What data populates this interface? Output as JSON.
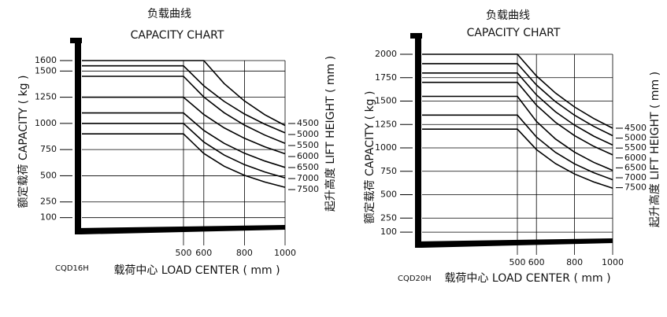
{
  "chart_data": [
    {
      "type": "line",
      "title": "负载曲线",
      "subtitle": "CAPACITY CHART",
      "model": "CQD16H",
      "x_label": "载荷中心 LOAD CENTER ( mm )",
      "y_label": "额定载荷 CAPACITY ( kg )",
      "legend_title": "起升高度 LIFT HEIGHT ( mm )",
      "x": [
        0,
        500,
        600,
        700,
        800,
        900,
        1000
      ],
      "xlim": [
        0,
        1000
      ],
      "ylim": [
        0,
        1600
      ],
      "xticks": [
        500,
        600,
        800,
        1000
      ],
      "yticks": [
        100,
        250,
        500,
        750,
        1000,
        1250,
        1500,
        1600
      ],
      "color": "#000000",
      "series": [
        {
          "name": "4500",
          "values": [
            1600,
            1600,
            1600,
            1381,
            1215,
            1083,
            980
          ]
        },
        {
          "name": "5000",
          "values": [
            1550,
            1550,
            1359,
            1210,
            1090,
            992,
            910
          ]
        },
        {
          "name": "5500",
          "values": [
            1450,
            1450,
            1252,
            1102,
            984,
            889,
            810
          ]
        },
        {
          "name": "6000",
          "values": [
            1250,
            1250,
            1085,
            958,
            858,
            777,
            710
          ]
        },
        {
          "name": "6500",
          "values": [
            1100,
            1100,
            933,
            810,
            715,
            641,
            580
          ]
        },
        {
          "name": "7000",
          "values": [
            1000,
            1000,
            822,
            698,
            606,
            536,
            480
          ]
        },
        {
          "name": "7500",
          "values": [
            900,
            900,
            713,
            591,
            504,
            440,
            390
          ]
        }
      ]
    },
    {
      "type": "line",
      "title": "负载曲线",
      "subtitle": "CAPACITY CHART",
      "model": "CQD20H",
      "x_label": "载荷中心 LOAD CENTER ( mm )",
      "y_label": "额定载荷 CAPACITY ( kg )",
      "legend_title": "起升高度 LIFT HEIGHT ( mm )",
      "x": [
        0,
        500,
        600,
        700,
        800,
        900,
        1000
      ],
      "xlim": [
        0,
        1000
      ],
      "ylim": [
        0,
        2000
      ],
      "xticks": [
        500,
        600,
        800,
        1000
      ],
      "yticks": [
        100,
        250,
        500,
        750,
        1000,
        1250,
        1500,
        1750,
        2000
      ],
      "color": "#000000",
      "series": [
        {
          "name": "4500",
          "values": [
            2000,
            2000,
            1769,
            1586,
            1437,
            1314,
            1210
          ]
        },
        {
          "name": "5000",
          "values": [
            1900,
            1900,
            1672,
            1493,
            1349,
            1230,
            1130
          ]
        },
        {
          "name": "5500",
          "values": [
            1800,
            1800,
            1566,
            1386,
            1243,
            1126,
            1030
          ]
        },
        {
          "name": "6000",
          "values": [
            1700,
            1700,
            1456,
            1273,
            1131,
            1018,
            925
          ]
        },
        {
          "name": "6500",
          "values": [
            1550,
            1550,
            1283,
            1095,
            955,
            846,
            760
          ]
        },
        {
          "name": "7000",
          "values": [
            1350,
            1350,
            1116,
            952,
            829,
            735,
            660
          ]
        },
        {
          "name": "7500",
          "values": [
            1200,
            1200,
            982,
            832,
            721,
            637,
            570
          ]
        }
      ]
    }
  ]
}
